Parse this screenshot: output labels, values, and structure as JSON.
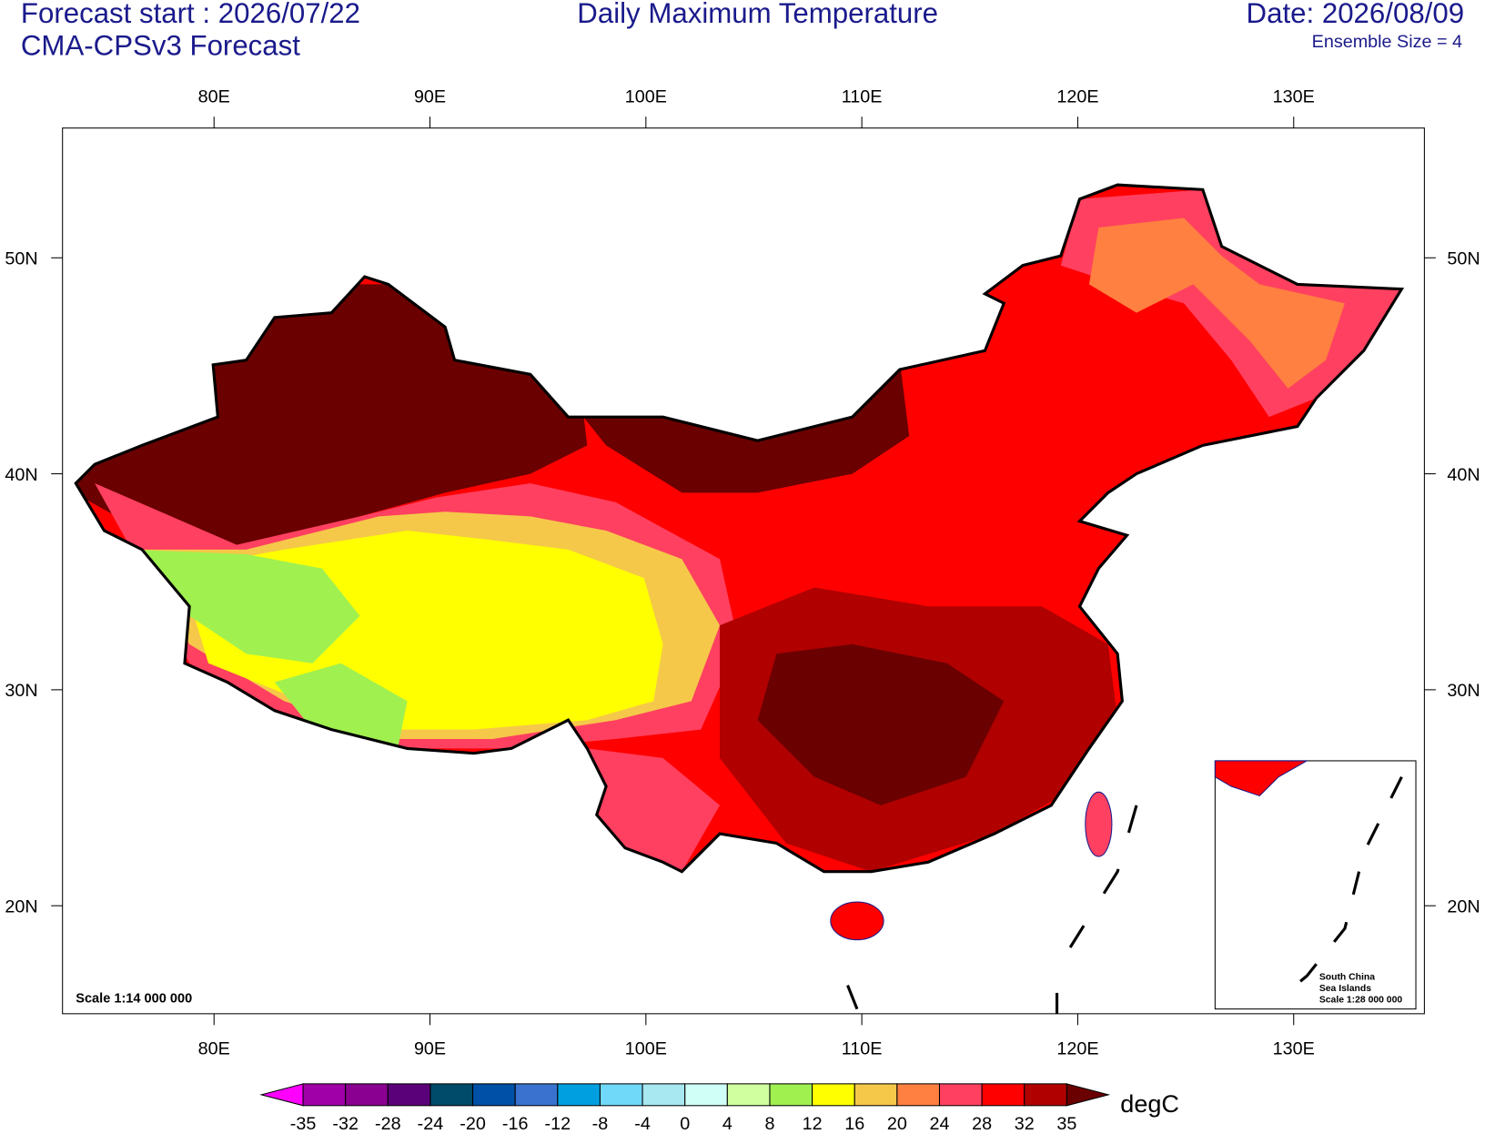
{
  "header": {
    "forecast_start": "Forecast start : 2026/07/22",
    "model": "CMA-CPSv3 Forecast",
    "title": "Daily Maximum Temperature",
    "date": "Date: 2026/08/09",
    "ensemble": "Ensemble Size = 4"
  },
  "map": {
    "lon_labels": [
      "80E",
      "90E",
      "100E",
      "110E",
      "120E",
      "130E"
    ],
    "lat_labels": [
      "50N",
      "40N",
      "30N",
      "20N"
    ],
    "scale": "Scale 1:14 000 000",
    "inset": {
      "lines": [
        "South China",
        "Sea Islands",
        "Scale 1:28 000 000"
      ]
    }
  },
  "colorbar": {
    "levels": [
      -35,
      -32,
      -28,
      -24,
      -20,
      -16,
      -12,
      -8,
      -4,
      0,
      4,
      8,
      12,
      16,
      20,
      24,
      28,
      32,
      35
    ],
    "colors": [
      "#ff00ff",
      "#a000a8",
      "#8a0090",
      "#5a0078",
      "#004a6a",
      "#0050a8",
      "#3a72d0",
      "#00a0e0",
      "#70d8f8",
      "#a8e8f0",
      "#d0fff8",
      "#d0ffa0",
      "#a0f050",
      "#ffff00",
      "#f5c84a",
      "#ff8040",
      "#ff4060",
      "#ff0000",
      "#b00000",
      "#6a0000"
    ],
    "unit": "degC"
  }
}
